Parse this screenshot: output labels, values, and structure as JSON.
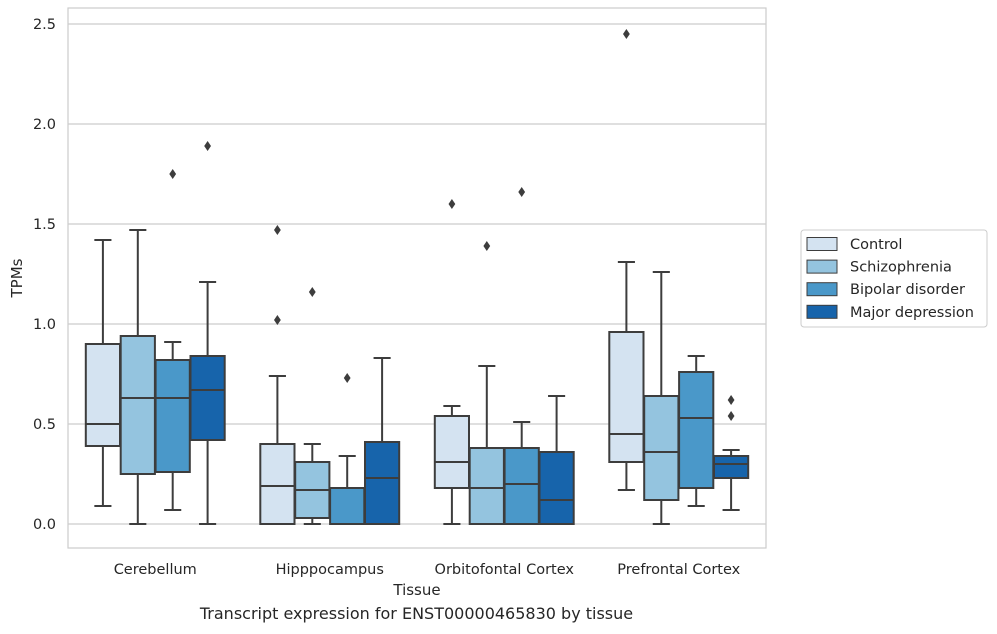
{
  "caption": "Transcript expression for ENST00000465830 by tissue",
  "chart_data": {
    "type": "box",
    "xlabel": "Tissue",
    "ylabel": "TPMs",
    "ylim": [
      -0.12,
      2.58
    ],
    "yticks": [
      "0.0",
      "0.5",
      "1.0",
      "1.5",
      "2.0",
      "2.5"
    ],
    "grid": true,
    "legend_placement": "right",
    "categories": [
      "Cerebellum",
      "Hipppocampus",
      "Orbitofontal Cortex",
      "Prefrontal Cortex"
    ],
    "series": [
      {
        "name": "Control",
        "color": "#d4e3f1",
        "boxes": [
          {
            "min": 0.09,
            "q1": 0.39,
            "median": 0.5,
            "q3": 0.9,
            "max": 1.42,
            "outliers": []
          },
          {
            "min": 0.0,
            "q1": 0.0,
            "median": 0.19,
            "q3": 0.4,
            "max": 0.74,
            "outliers": [
              1.02,
              1.47
            ]
          },
          {
            "min": 0.0,
            "q1": 0.18,
            "median": 0.31,
            "q3": 0.54,
            "max": 0.59,
            "outliers": [
              1.6
            ]
          },
          {
            "min": 0.17,
            "q1": 0.31,
            "median": 0.45,
            "q3": 0.96,
            "max": 1.31,
            "outliers": [
              2.45
            ]
          }
        ]
      },
      {
        "name": "Schizophrenia",
        "color": "#94c4df",
        "boxes": [
          {
            "min": 0.0,
            "q1": 0.25,
            "median": 0.63,
            "q3": 0.94,
            "max": 1.47,
            "outliers": []
          },
          {
            "min": 0.0,
            "q1": 0.03,
            "median": 0.17,
            "q3": 0.31,
            "max": 0.4,
            "outliers": [
              1.16
            ]
          },
          {
            "min": 0.0,
            "q1": 0.0,
            "median": 0.18,
            "q3": 0.38,
            "max": 0.79,
            "outliers": [
              1.39
            ]
          },
          {
            "min": 0.0,
            "q1": 0.12,
            "median": 0.36,
            "q3": 0.64,
            "max": 1.26,
            "outliers": []
          }
        ]
      },
      {
        "name": "Bipolar disorder",
        "color": "#4a98c9",
        "boxes": [
          {
            "min": 0.07,
            "q1": 0.26,
            "median": 0.63,
            "q3": 0.82,
            "max": 0.91,
            "outliers": [
              1.75
            ]
          },
          {
            "min": 0.0,
            "q1": 0.0,
            "median": 0.0,
            "q3": 0.18,
            "max": 0.34,
            "outliers": [
              0.73
            ]
          },
          {
            "min": 0.0,
            "q1": 0.0,
            "median": 0.2,
            "q3": 0.38,
            "max": 0.51,
            "outliers": [
              1.66
            ]
          },
          {
            "min": 0.09,
            "q1": 0.18,
            "median": 0.53,
            "q3": 0.76,
            "max": 0.84,
            "outliers": []
          }
        ]
      },
      {
        "name": "Major depression",
        "color": "#1764ab",
        "boxes": [
          {
            "min": 0.0,
            "q1": 0.42,
            "median": 0.67,
            "q3": 0.84,
            "max": 1.21,
            "outliers": [
              1.89
            ]
          },
          {
            "min": 0.0,
            "q1": 0.0,
            "median": 0.23,
            "q3": 0.41,
            "max": 0.83,
            "outliers": []
          },
          {
            "min": 0.0,
            "q1": 0.0,
            "median": 0.12,
            "q3": 0.36,
            "max": 0.64,
            "outliers": []
          },
          {
            "min": 0.07,
            "q1": 0.23,
            "median": 0.3,
            "q3": 0.34,
            "max": 0.37,
            "outliers": [
              0.54,
              0.62
            ]
          }
        ]
      }
    ]
  }
}
